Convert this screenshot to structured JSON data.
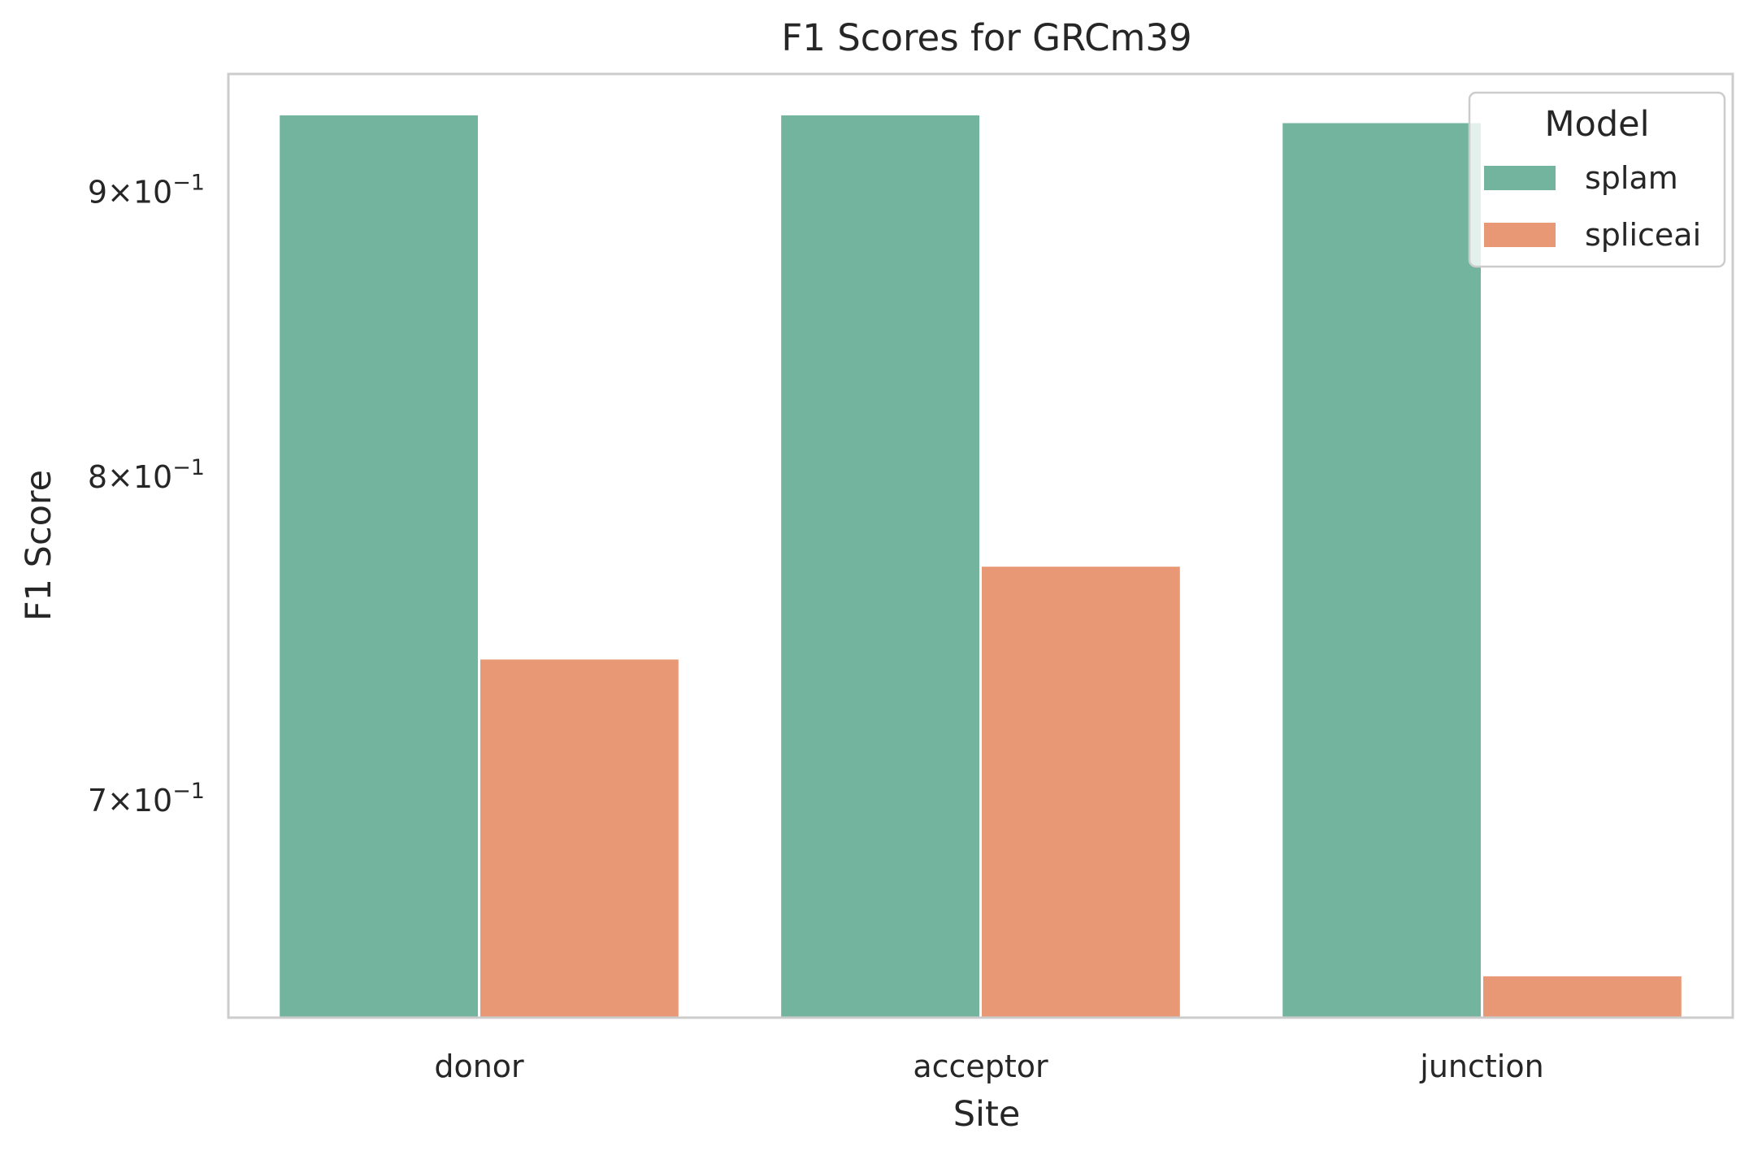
{
  "chart_data": {
    "type": "bar",
    "title": "F1 Scores for GRCm39",
    "xlabel": "Site",
    "ylabel": "F1 Score",
    "categories": [
      "donor",
      "acceptor",
      "junction"
    ],
    "series": [
      {
        "name": "splam",
        "values": [
          0.929,
          0.929,
          0.926
        ],
        "color": "#73b49f"
      },
      {
        "name": "spliceai",
        "values": [
          0.742,
          0.771,
          0.651
        ],
        "color": "#e99876"
      }
    ],
    "yscale": "log",
    "ylim": [
      0.64,
      0.945
    ],
    "yticks": [
      {
        "value": 0.9,
        "mantissa": "9",
        "base": "10",
        "exponent": "−1"
      },
      {
        "value": 0.8,
        "mantissa": "8",
        "base": "10",
        "exponent": "−1"
      },
      {
        "value": 0.7,
        "mantissa": "7",
        "base": "10",
        "exponent": "−1"
      }
    ],
    "grid": false,
    "legend": {
      "title": "Model",
      "position": "top-right"
    }
  }
}
